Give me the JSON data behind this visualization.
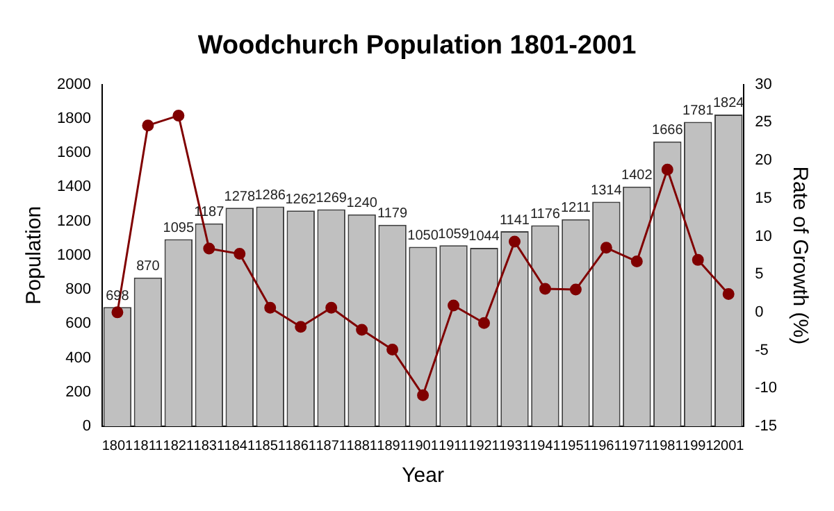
{
  "chart_data": {
    "type": "bar",
    "title": "Woodchurch Population 1801-2001",
    "xlabel": "Year",
    "ylabel": "Population",
    "y2label": "Rate of Growth (%)",
    "categories": [
      "1801",
      "1811",
      "1821",
      "1831",
      "1841",
      "1851",
      "1861",
      "1871",
      "1881",
      "1891",
      "1901",
      "1911",
      "1921",
      "1931",
      "1941",
      "1951",
      "1961",
      "1971",
      "1981",
      "1991",
      "2001"
    ],
    "series": [
      {
        "color": "#c0c0c0",
        "values": [
          698,
          870,
          1095,
          1187,
          1278,
          1286,
          1262,
          1269,
          1240,
          1179,
          1050,
          1059,
          1044,
          1141,
          1176,
          1211,
          1314,
          1402,
          1666,
          1781,
          1824
        ],
        "value_labels": [
          "698",
          "870",
          "1095",
          "1187",
          "1278",
          "1286",
          "1262",
          "1269",
          "1240",
          "1179",
          "1050",
          "1059",
          "1044",
          "1141",
          "1176",
          "1211",
          "1314",
          "1402",
          "1666",
          "1781",
          "1824"
        ]
      },
      {
        "type": "line",
        "axis": "y2",
        "color": "#800000",
        "values": [
          0,
          24.6,
          25.9,
          8.4,
          7.7,
          0.6,
          -1.9,
          0.6,
          -2.3,
          -4.9,
          -10.9,
          0.9,
          -1.4,
          9.3,
          3.1,
          3.0,
          8.5,
          6.7,
          18.8,
          6.9,
          2.4
        ]
      }
    ],
    "ylim": [
      0,
      2000
    ],
    "yticks": [
      0,
      200,
      400,
      600,
      800,
      1000,
      1200,
      1400,
      1600,
      1800,
      2000
    ],
    "y2lim": [
      -15,
      30
    ],
    "y2ticks": [
      -15,
      -10,
      -5,
      0,
      5,
      10,
      15,
      20,
      25,
      30
    ],
    "marker": "circle",
    "legend": false,
    "grid": false
  }
}
